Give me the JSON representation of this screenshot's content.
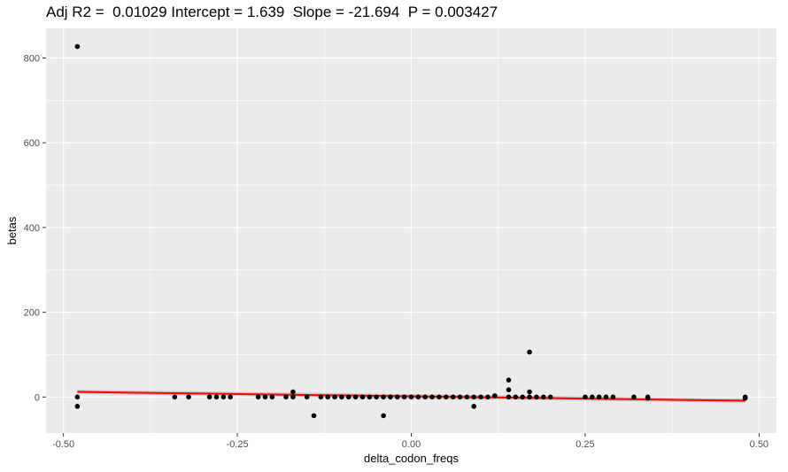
{
  "chart_data": {
    "type": "scatter",
    "title": "Adj R2 =  0.01029 Intercept = 1.639  Slope = -21.694  P = 0.003427",
    "xlabel": "delta_codon_freqs",
    "ylabel": "betas",
    "xlim": [
      -0.525,
      0.525
    ],
    "ylim": [
      -85,
      870
    ],
    "xticks": [
      -0.5,
      -0.25,
      0.0,
      0.25,
      0.5
    ],
    "xtick_labels": [
      "-0.50",
      "-0.25",
      "0.00",
      "0.25",
      "0.50"
    ],
    "yticks": [
      0,
      200,
      400,
      600,
      800
    ],
    "ytick_labels": [
      "0",
      "200",
      "400",
      "600",
      "800"
    ],
    "grid": true,
    "background": "#ebebeb",
    "point_color": "#000000",
    "fit_color": "#ff0000",
    "band_color": "#bdbdbd",
    "points": [
      {
        "x": -0.48,
        "y": 827
      },
      {
        "x": -0.48,
        "y": 0
      },
      {
        "x": -0.48,
        "y": -22
      },
      {
        "x": -0.34,
        "y": 0
      },
      {
        "x": -0.32,
        "y": 0
      },
      {
        "x": -0.29,
        "y": 0
      },
      {
        "x": -0.28,
        "y": 0
      },
      {
        "x": -0.27,
        "y": 0
      },
      {
        "x": -0.26,
        "y": 0
      },
      {
        "x": -0.22,
        "y": 0
      },
      {
        "x": -0.21,
        "y": 0
      },
      {
        "x": -0.2,
        "y": 0
      },
      {
        "x": -0.18,
        "y": 0
      },
      {
        "x": -0.17,
        "y": 0
      },
      {
        "x": -0.17,
        "y": 12
      },
      {
        "x": -0.15,
        "y": 0
      },
      {
        "x": -0.14,
        "y": -44
      },
      {
        "x": -0.13,
        "y": 0
      },
      {
        "x": -0.12,
        "y": 0
      },
      {
        "x": -0.11,
        "y": 0
      },
      {
        "x": -0.1,
        "y": 0
      },
      {
        "x": -0.09,
        "y": 0
      },
      {
        "x": -0.08,
        "y": 0
      },
      {
        "x": -0.07,
        "y": 0
      },
      {
        "x": -0.06,
        "y": 0
      },
      {
        "x": -0.05,
        "y": 0
      },
      {
        "x": -0.04,
        "y": 0
      },
      {
        "x": -0.04,
        "y": -44
      },
      {
        "x": -0.03,
        "y": 0
      },
      {
        "x": -0.02,
        "y": 0
      },
      {
        "x": -0.01,
        "y": 0
      },
      {
        "x": 0.0,
        "y": 0
      },
      {
        "x": 0.01,
        "y": 0
      },
      {
        "x": 0.02,
        "y": 0
      },
      {
        "x": 0.03,
        "y": 0
      },
      {
        "x": 0.04,
        "y": 0
      },
      {
        "x": 0.05,
        "y": 0
      },
      {
        "x": 0.06,
        "y": 0
      },
      {
        "x": 0.07,
        "y": 0
      },
      {
        "x": 0.08,
        "y": 0
      },
      {
        "x": 0.09,
        "y": 0
      },
      {
        "x": 0.09,
        "y": -22
      },
      {
        "x": 0.1,
        "y": 0
      },
      {
        "x": 0.11,
        "y": 0
      },
      {
        "x": 0.12,
        "y": 3
      },
      {
        "x": 0.14,
        "y": 0
      },
      {
        "x": 0.14,
        "y": 17
      },
      {
        "x": 0.14,
        "y": 40
      },
      {
        "x": 0.15,
        "y": 0
      },
      {
        "x": 0.16,
        "y": 0
      },
      {
        "x": 0.17,
        "y": 106
      },
      {
        "x": 0.17,
        "y": 12
      },
      {
        "x": 0.17,
        "y": 0
      },
      {
        "x": 0.18,
        "y": 0
      },
      {
        "x": 0.19,
        "y": 0
      },
      {
        "x": 0.2,
        "y": 0
      },
      {
        "x": 0.25,
        "y": 0
      },
      {
        "x": 0.26,
        "y": 0
      },
      {
        "x": 0.27,
        "y": 0
      },
      {
        "x": 0.28,
        "y": 0
      },
      {
        "x": 0.29,
        "y": 0
      },
      {
        "x": 0.32,
        "y": 0
      },
      {
        "x": 0.34,
        "y": 0
      },
      {
        "x": 0.34,
        "y": -3
      },
      {
        "x": 0.48,
        "y": 0
      },
      {
        "x": 0.48,
        "y": -3
      }
    ],
    "fit_line": {
      "intercept": 1.639,
      "slope": -21.694,
      "x_range": [
        -0.48,
        0.48
      ],
      "band_halfwidth": 5
    }
  }
}
